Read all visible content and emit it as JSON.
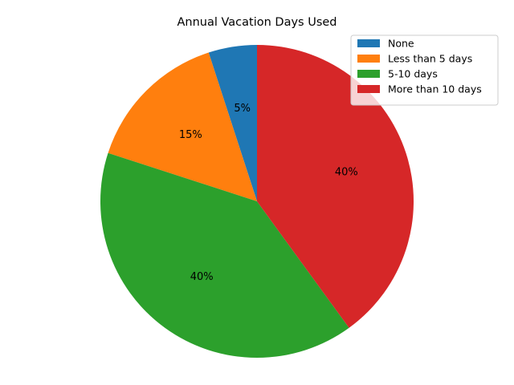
{
  "chart_data": {
    "type": "pie",
    "title": "Annual Vacation Days Used",
    "categories": [
      "None",
      "Less than 5 days",
      "5-10 days",
      "More than 10 days"
    ],
    "values": [
      5,
      15,
      40,
      40
    ],
    "value_labels": [
      "5%",
      "15%",
      "40%",
      "40%"
    ],
    "colors": [
      "#1f77b4",
      "#ff7f0e",
      "#2ca02c",
      "#d62728"
    ],
    "start_angle_deg": 90,
    "direction": "counterclockwise",
    "legend_position": "top-right"
  }
}
